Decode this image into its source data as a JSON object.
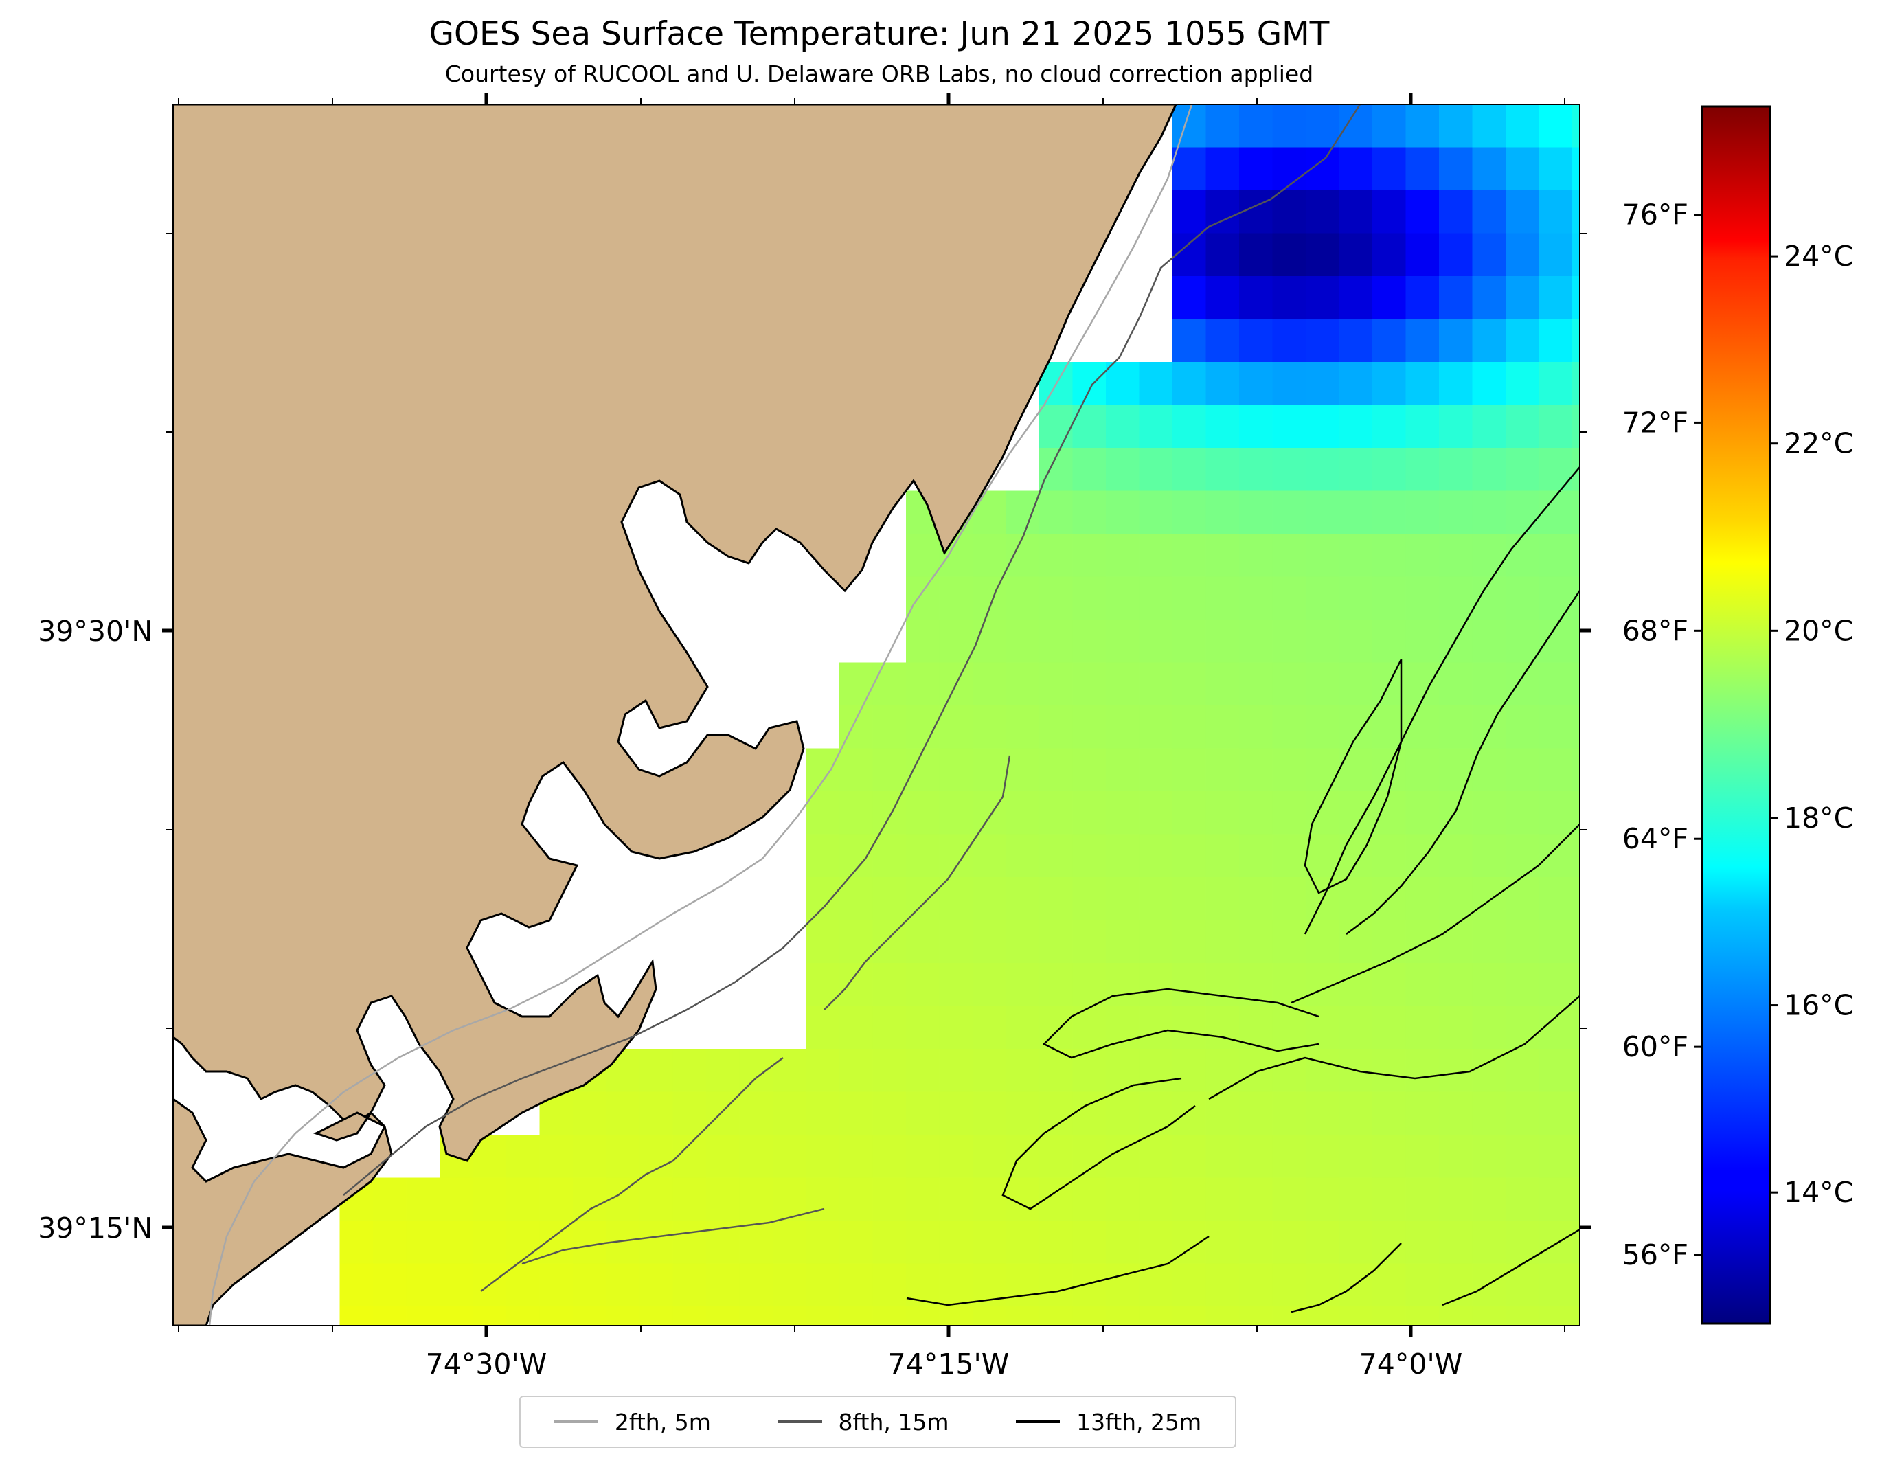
{
  "title": "GOES Sea Surface Temperature: Jun 21 2025 1055 GMT",
  "subtitle": "Courtesy of RUCOOL and U. Delaware ORB Labs, no cloud correction applied",
  "axes": {
    "x_ticks": [
      "74°30'W",
      "74°15'W",
      "74°0'W"
    ],
    "y_ticks": [
      "39°30'N",
      "39°15'N"
    ]
  },
  "colorbar": {
    "colormap": "jet",
    "celsius_range": [
      12.6,
      25.6
    ],
    "celsius_ticks": [
      "14°C",
      "16°C",
      "18°C",
      "20°C",
      "22°C",
      "24°C"
    ],
    "fahrenheit_ticks": [
      "56°F",
      "60°F",
      "64°F",
      "68°F",
      "72°F",
      "76°F"
    ],
    "left_ticks_values_f": [
      56,
      60,
      64,
      68,
      72,
      76
    ],
    "right_ticks_values_c": [
      14,
      16,
      18,
      20,
      22,
      24
    ]
  },
  "legend": [
    {
      "label": "2fth, 5m",
      "color": "#a8a8a8"
    },
    {
      "label": "8fth, 15m",
      "color": "#555555"
    },
    {
      "label": "13fth, 25m",
      "color": "#000000"
    }
  ],
  "colors": {
    "land": "#d2b48c",
    "coastline": "#000000",
    "nodata": "#ffffff"
  }
}
